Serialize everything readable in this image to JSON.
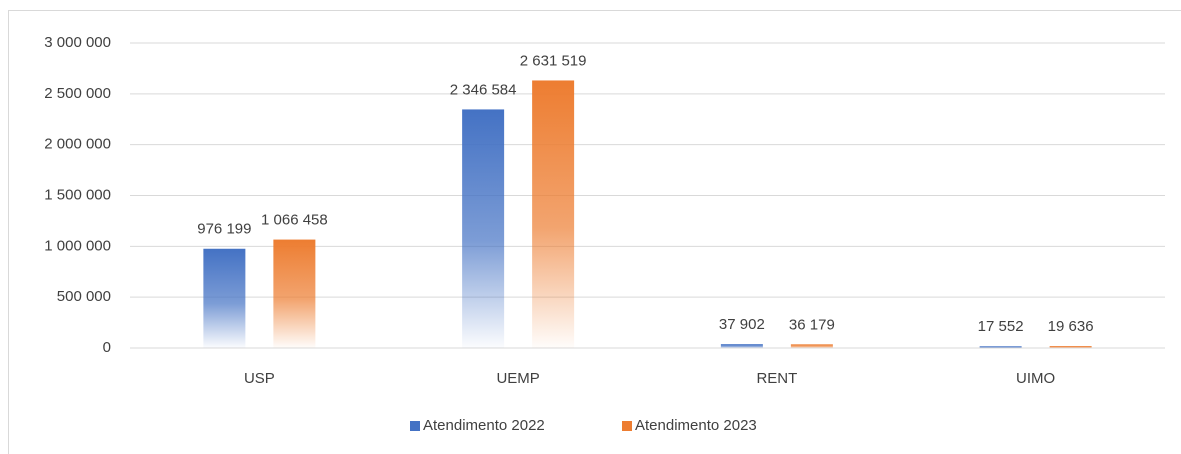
{
  "chart_data": {
    "type": "bar",
    "categories": [
      "USP",
      "UEMP",
      "RENT",
      "UIMO"
    ],
    "series": [
      {
        "name": "Atendimento 2022",
        "color": "#4472c4",
        "values": [
          976199,
          2346584,
          37902,
          17552
        ],
        "value_labels": [
          "976 199",
          "2 346 584",
          "37 902",
          "17 552"
        ]
      },
      {
        "name": "Atendimento 2023",
        "color": "#ed7d31",
        "values": [
          1066458,
          2631519,
          36179,
          19636
        ],
        "value_labels": [
          "1 066 458",
          "2 631 519",
          "36 179",
          "19 636"
        ]
      }
    ],
    "ylim": [
      0,
      3000000
    ],
    "yticks": [
      0,
      {
        "value": 500000,
        "label": "500 000"
      },
      {
        "value": 1000000,
        "label": "1 000 000"
      },
      {
        "value": 1500000,
        "label": "1 500 000"
      },
      {
        "value": 2000000,
        "label": "2 000 000"
      },
      {
        "value": 2500000,
        "label": "2 500 000"
      },
      {
        "value": 3000000,
        "label": "3 000 000"
      }
    ],
    "grid": true,
    "legend": "bottom"
  }
}
